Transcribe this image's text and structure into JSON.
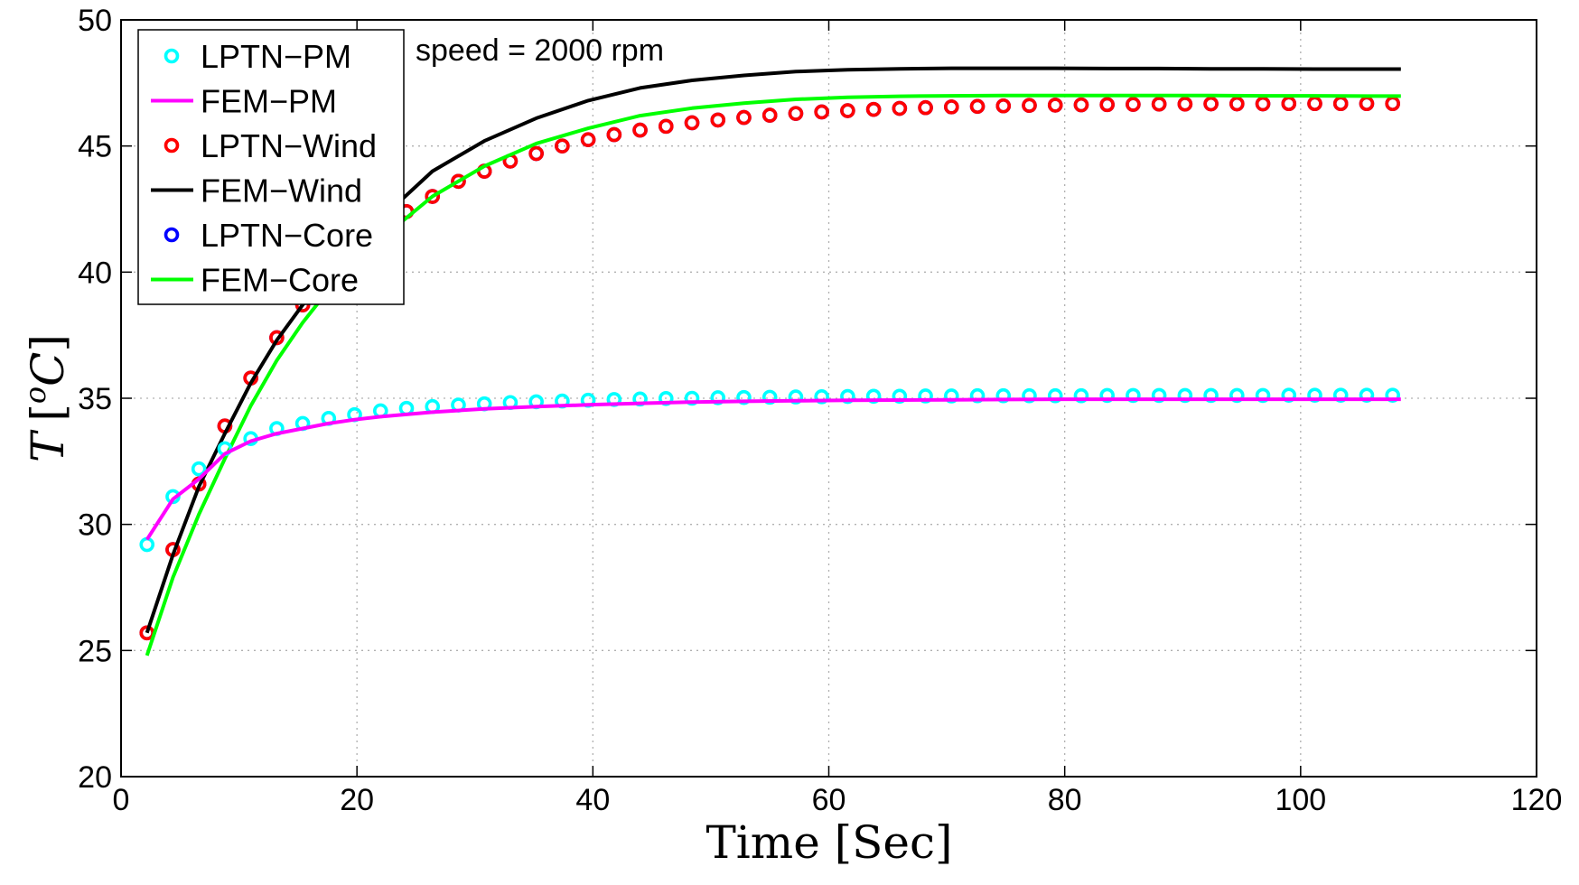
{
  "chart_data": {
    "type": "line",
    "xlabel": "Time [Sec]",
    "ylabel": "T [oC]",
    "ylabel_parts": {
      "symbol": "T",
      "open": "[",
      "sup": "o",
      "unit": "C",
      "close": "]"
    },
    "xlim": [
      0,
      120
    ],
    "ylim": [
      20,
      50
    ],
    "xticks": [
      0,
      20,
      40,
      60,
      80,
      100,
      120
    ],
    "yticks": [
      20,
      25,
      30,
      35,
      40,
      45,
      50
    ],
    "grid": true,
    "legend_position": "top-left",
    "annotations": [
      {
        "text": "speed = 2000 rpm"
      }
    ],
    "marker_x": [
      2.2,
      4.4,
      6.6,
      8.8,
      11.0,
      13.2,
      15.4,
      17.6,
      19.8,
      22.0,
      24.2,
      26.4,
      28.6,
      30.8,
      33.0,
      35.2,
      37.4,
      39.6,
      41.8,
      44.0,
      46.2,
      48.4,
      50.6,
      52.8,
      55.0,
      57.2,
      59.4,
      61.6,
      63.8,
      66.0,
      68.2,
      70.4,
      72.6,
      74.8,
      77.0,
      79.2,
      81.4,
      83.6,
      85.8,
      88.0,
      90.2,
      92.4,
      94.6,
      96.8,
      99.0,
      101.2,
      103.4,
      105.6,
      107.8
    ],
    "line_x": [
      2.2,
      4.4,
      6.6,
      8.8,
      11.0,
      13.2,
      15.4,
      17.6,
      19.8,
      22.0,
      26.4,
      30.8,
      35.2,
      39.6,
      44.0,
      48.4,
      52.8,
      57.2,
      61.6,
      66.0,
      70.4,
      74.8,
      79.2,
      83.6,
      88.0,
      92.4,
      96.8,
      101.2,
      105.6,
      108.5
    ],
    "series": [
      {
        "name": "LPTN−PM",
        "style": "marker",
        "color": "#00ffff",
        "values": [
          29.2,
          31.1,
          32.2,
          33.0,
          33.4,
          33.8,
          34.0,
          34.2,
          34.35,
          34.5,
          34.6,
          34.67,
          34.73,
          34.78,
          34.83,
          34.86,
          34.89,
          34.92,
          34.95,
          34.97,
          34.99,
          35.0,
          35.02,
          35.03,
          35.04,
          35.05,
          35.06,
          35.07,
          35.08,
          35.08,
          35.09,
          35.09,
          35.1,
          35.1,
          35.1,
          35.1,
          35.1,
          35.11,
          35.11,
          35.11,
          35.11,
          35.11,
          35.11,
          35.11,
          35.12,
          35.12,
          35.12,
          35.12,
          35.12
        ]
      },
      {
        "name": "FEM−PM",
        "style": "line",
        "color": "#ff00ff",
        "values": [
          29.4,
          31.0,
          31.8,
          32.8,
          33.3,
          33.6,
          33.8,
          34.0,
          34.15,
          34.27,
          34.45,
          34.58,
          34.67,
          34.74,
          34.8,
          34.85,
          34.88,
          34.9,
          34.92,
          34.93,
          34.94,
          34.95,
          34.96,
          34.96,
          34.96,
          34.96,
          34.96,
          34.96,
          34.96,
          34.96
        ]
      },
      {
        "name": "LPTN−Wind",
        "style": "marker",
        "color": "#ff0000",
        "values": [
          25.7,
          29.0,
          31.6,
          33.9,
          35.8,
          37.4,
          38.7,
          39.8,
          40.8,
          41.7,
          42.4,
          43.0,
          43.6,
          44.0,
          44.4,
          44.7,
          45.0,
          45.25,
          45.45,
          45.63,
          45.78,
          45.92,
          46.03,
          46.13,
          46.22,
          46.29,
          46.35,
          46.4,
          46.45,
          46.49,
          46.52,
          46.55,
          46.57,
          46.59,
          46.61,
          46.62,
          46.63,
          46.64,
          46.65,
          46.66,
          46.66,
          46.67,
          46.67,
          46.67,
          46.68,
          46.68,
          46.68,
          46.68,
          46.68
        ]
      },
      {
        "name": "FEM−Wind",
        "style": "line",
        "color": "#000000",
        "values": [
          25.7,
          28.8,
          31.5,
          33.6,
          35.6,
          37.3,
          38.7,
          39.9,
          41.0,
          42.1,
          44.0,
          45.2,
          46.1,
          46.8,
          47.3,
          47.6,
          47.8,
          47.95,
          48.02,
          48.06,
          48.08,
          48.08,
          48.08,
          48.07,
          48.07,
          48.06,
          48.06,
          48.05,
          48.05,
          48.05
        ]
      },
      {
        "name": "LPTN−Core",
        "style": "marker",
        "color": "#0000ff",
        "values": [
          25.7,
          29.0,
          31.6,
          33.9,
          35.8,
          37.4,
          38.7,
          39.8,
          40.8,
          41.7,
          42.4,
          43.0,
          43.6,
          44.0,
          44.4,
          44.7,
          45.0,
          45.25,
          45.45,
          45.63,
          45.78,
          45.92,
          46.03,
          46.13,
          46.22,
          46.29,
          46.35,
          46.4,
          46.45,
          46.49,
          46.52,
          46.55,
          46.57,
          46.59,
          46.61,
          46.62,
          46.63,
          46.64,
          46.65,
          46.66,
          46.66,
          46.67,
          46.67,
          46.67,
          46.68,
          46.68,
          46.68,
          46.68,
          46.68
        ]
      },
      {
        "name": "FEM−Core",
        "style": "line",
        "color": "#00ff00",
        "values": [
          24.8,
          27.9,
          30.4,
          32.6,
          34.7,
          36.5,
          38.0,
          39.3,
          40.4,
          41.3,
          43.0,
          44.2,
          45.1,
          45.7,
          46.2,
          46.5,
          46.7,
          46.85,
          46.93,
          46.97,
          46.99,
          47.0,
          47.0,
          47.0,
          47.0,
          47.0,
          46.99,
          46.99,
          46.98,
          46.98
        ]
      }
    ]
  }
}
